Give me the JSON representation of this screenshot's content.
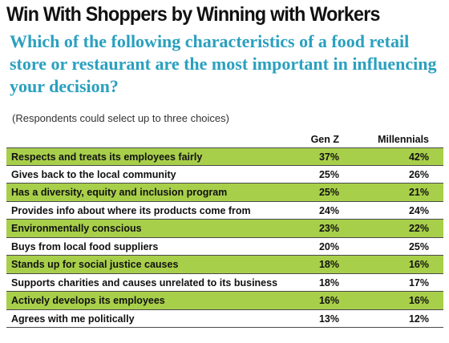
{
  "title": "Win With Shoppers by Winning with Workers",
  "question": "Which of the following characteristics of a food retail store or restaurant are the most important in influencing your decision?",
  "note": "(Respondents could select up to three choices)",
  "colors": {
    "shade": "#a8cf4a",
    "question": "#2aa0bf"
  },
  "chart_data": {
    "type": "table",
    "columns": [
      "Gen Z",
      "Millennials"
    ],
    "rows": [
      {
        "label": "Respects and treats its employees fairly",
        "genz": "37%",
        "mill": "42%"
      },
      {
        "label": "Gives back to the local community",
        "genz": "25%",
        "mill": "26%"
      },
      {
        "label": "Has a diversity, equity and inclusion program",
        "genz": "25%",
        "mill": "21%"
      },
      {
        "label": "Provides info about where its products come from",
        "genz": "24%",
        "mill": "24%"
      },
      {
        "label": "Environmentally conscious",
        "genz": "23%",
        "mill": "22%"
      },
      {
        "label": "Buys from local food suppliers",
        "genz": "20%",
        "mill": "25%"
      },
      {
        "label": "Stands up for social justice causes",
        "genz": "18%",
        "mill": "16%"
      },
      {
        "label": "Supports charities and causes unrelated to its business",
        "genz": "18%",
        "mill": "17%"
      },
      {
        "label": "Actively develops its employees",
        "genz": "16%",
        "mill": "16%"
      },
      {
        "label": "Agrees with me politically",
        "genz": "13%",
        "mill": "12%"
      }
    ]
  }
}
